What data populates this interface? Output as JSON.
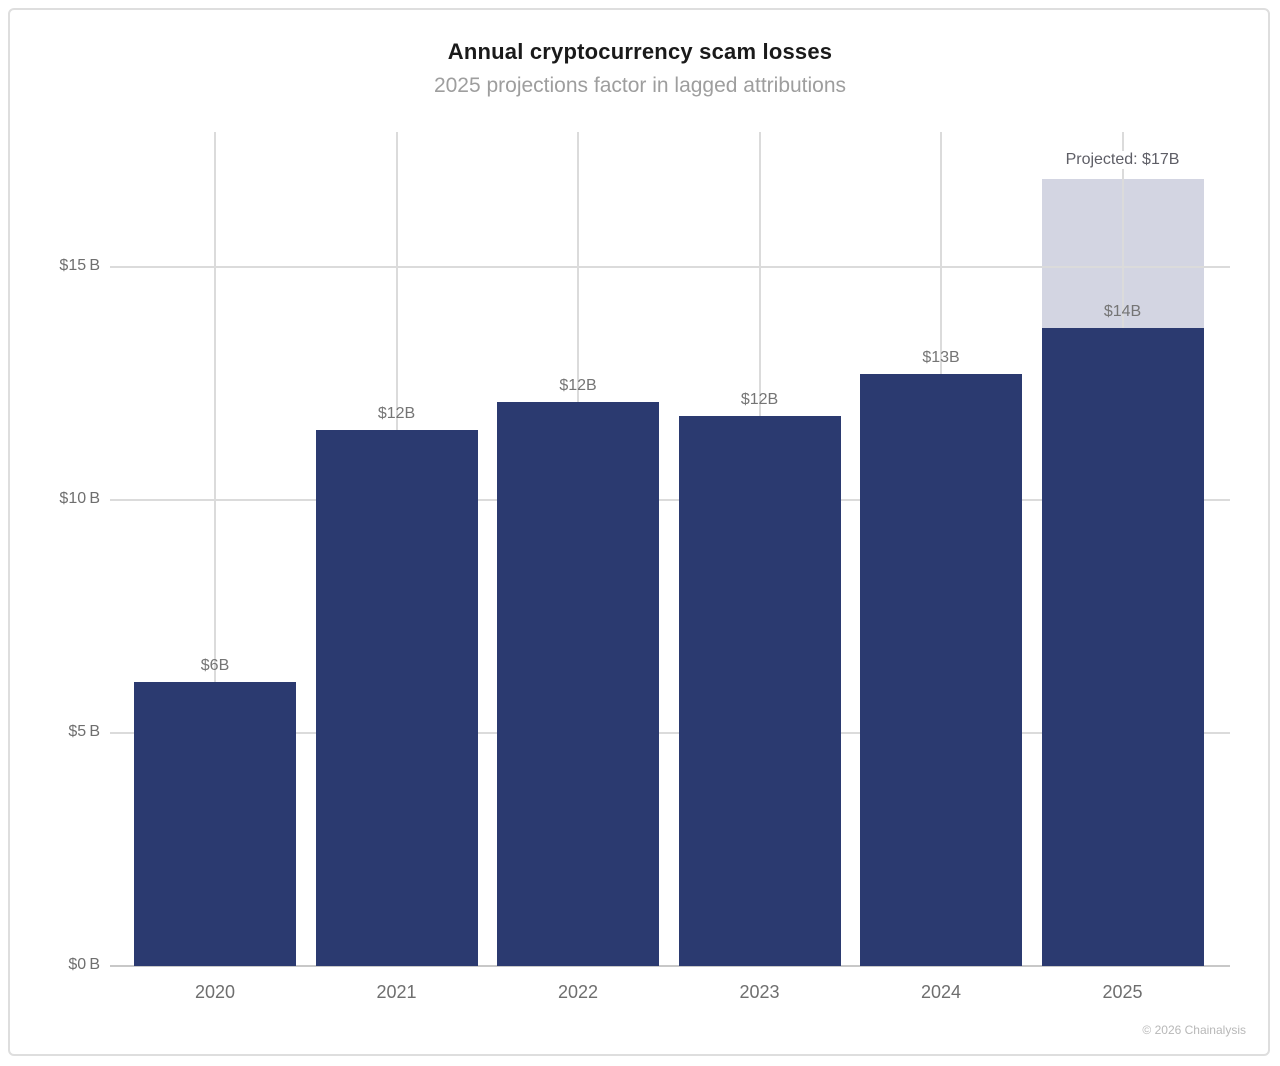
{
  "header": {
    "title": "Annual cryptocurrency scam losses",
    "subtitle": "2025 projections factor in lagged attributions"
  },
  "footer": {
    "copyright": "© 2026 Chainalysis"
  },
  "colors": {
    "bar": "#2B3A70",
    "projected_fill": "#D3D5E2",
    "grid": "#DBDBDB",
    "axis": "#C8C8C8",
    "tick_label": "#6F6F6F",
    "bar_label": "#757575",
    "title": "#1A1A1A",
    "subtitle": "#9E9E9E"
  },
  "chart_data": {
    "type": "bar",
    "title": "Annual cryptocurrency scam losses",
    "subtitle": "2025 projections factor in lagged attributions",
    "categories": [
      "2020",
      "2021",
      "2022",
      "2023",
      "2024",
      "2025"
    ],
    "values": [
      6.1,
      11.5,
      12.1,
      11.8,
      12.7,
      13.7
    ],
    "bar_labels": [
      "$6B",
      "$12B",
      "$12B",
      "$12B",
      "$13B",
      "$14B"
    ],
    "projected": {
      "category": "2025",
      "total": 16.9,
      "label": "Projected: $17B"
    },
    "xlabel": "",
    "ylabel": "",
    "ylim": [
      0,
      17.9
    ],
    "yticks": [
      0,
      5,
      10,
      15
    ],
    "ytick_labels": [
      "$0 B",
      "$5 B",
      "$10 B",
      "$15 B"
    ],
    "grid": {
      "horizontal": true,
      "vertical_at_bar_centers": true
    },
    "legend": "none",
    "source": "© 2026 Chainalysis"
  }
}
